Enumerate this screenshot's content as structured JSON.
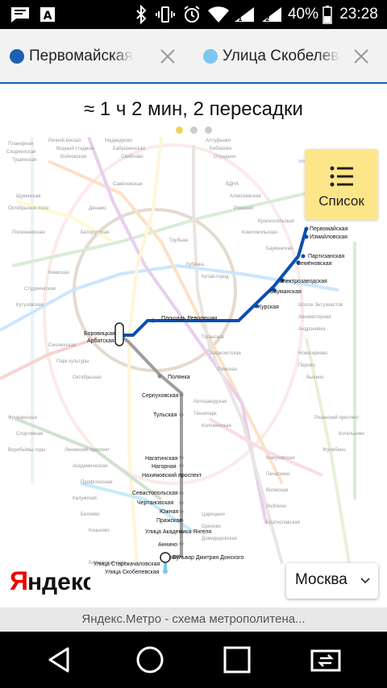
{
  "status_bar": {
    "battery": "40%",
    "time": "23:28"
  },
  "route": {
    "from_station": "Первомайская",
    "from_color": "#1e5fb3",
    "to_station": "Улица Скобелевская",
    "to_color": "#7cc6f2"
  },
  "summary": {
    "text": "≈ 1 ч 2 мин,  2 пересадки",
    "pages": 3,
    "active_page": 1
  },
  "list_button": {
    "label": "Список"
  },
  "map": {
    "route_stations": [
      "Первомайская",
      "Измайловская",
      "Партизанская",
      "Семёновская",
      "Электрозаводская",
      "Бауманская",
      "Курская",
      "Площадь Революции",
      "Боровицкая",
      "Арбатская",
      "Полянка",
      "Серпуховская",
      "Тульская",
      "Нагатинская",
      "Нагорная",
      "Нахимовский проспект",
      "Севастопольская",
      "Чертановская",
      "Южная",
      "Пражская",
      "Улица Академика Янгеля",
      "Аннино",
      "Бульвар Дмитрия Донского",
      "Улица Старокачаловская",
      "Улица Скобелевская"
    ],
    "blue_line_color": "#0a4fb0",
    "grey_line_color": "#9e9e9e"
  },
  "logo_text": "Яндекс",
  "city_selector": {
    "value": "Москва"
  },
  "caption": "Яндекс.Метро - схема метрополитена..."
}
